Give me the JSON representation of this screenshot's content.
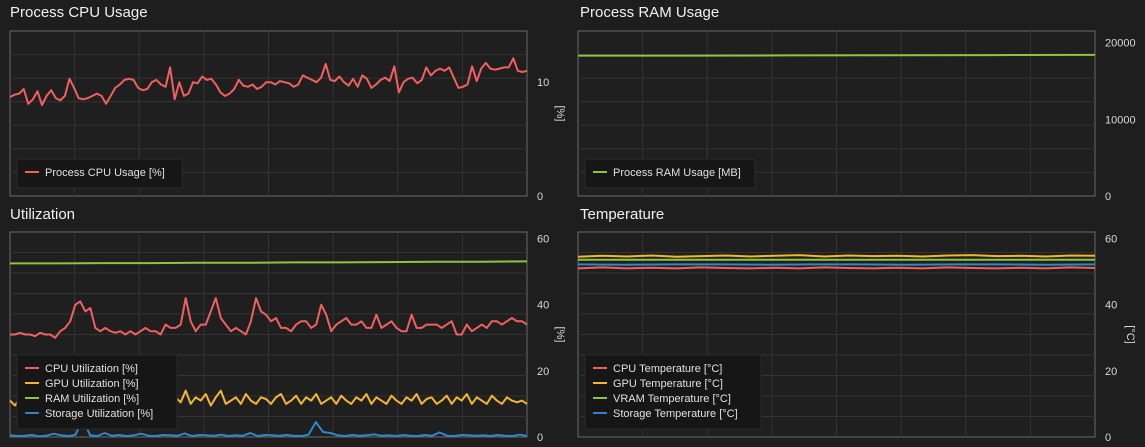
{
  "chart_data": [
    {
      "type": "line",
      "title": "Process CPU Usage",
      "ylabel": "[%]",
      "ylim": [
        0,
        14.5
      ],
      "yticks": [
        "0",
        "10"
      ],
      "ytick_values": [
        0,
        10
      ],
      "legend_position": "bottom-left",
      "grid": true,
      "series": [
        {
          "name": "Process CPU Usage [%]",
          "color": "#f0605e",
          "values": [
            8.7,
            8.9,
            9.0,
            9.4,
            8.1,
            8.5,
            9.2,
            8.0,
            8.8,
            9.3,
            8.6,
            8.4,
            8.8,
            10.3,
            9.5,
            8.6,
            8.5,
            8.6,
            8.8,
            9.0,
            8.8,
            8.1,
            8.8,
            9.5,
            9.8,
            10.2,
            10.3,
            10.2,
            9.5,
            9.3,
            9.4,
            10.0,
            10.2,
            9.8,
            9.6,
            11.3,
            8.5,
            10.0,
            8.8,
            9.0,
            10.0,
            9.9,
            10.5,
            10.2,
            10.3,
            9.8,
            9.1,
            8.8,
            9.0,
            9.4,
            10.2,
            9.7,
            9.6,
            9.8,
            9.4,
            9.6,
            10.0,
            10.0,
            9.8,
            10.1,
            10.0,
            9.9,
            9.6,
            9.8,
            10.6,
            10.4,
            10.2,
            10.0,
            10.4,
            11.6,
            10.2,
            10.1,
            10.5,
            10.0,
            9.7,
            10.3,
            9.6,
            10.6,
            10.3,
            9.5,
            9.8,
            10.2,
            10.4,
            10.1,
            11.4,
            9.1,
            10.0,
            10.3,
            10.4,
            9.9,
            10.2,
            11.3,
            10.6,
            11.0,
            11.2,
            11.0,
            11.3,
            10.4,
            9.5,
            9.6,
            9.8,
            11.4,
            10.1,
            11.2,
            11.7,
            11.2,
            11.1,
            11.2,
            11.3,
            11.3,
            12.1,
            11.0,
            10.9,
            11.0
          ]
        }
      ]
    },
    {
      "type": "line",
      "title": "Process RAM Usage",
      "ylabel": "",
      "ylim": [
        0,
        21500
      ],
      "yticks": [
        "0",
        "10000",
        "20000"
      ],
      "ytick_values": [
        0,
        10000,
        20000
      ],
      "legend_position": "bottom-left",
      "grid": true,
      "series": [
        {
          "name": "Process RAM Usage [MB]",
          "color": "#8cc63f",
          "values": [
            18300,
            18300,
            18320,
            18340,
            18360,
            18380
          ]
        }
      ]
    },
    {
      "type": "line",
      "title": "Utilization",
      "ylabel": "[%]",
      "ylim": [
        0,
        62
      ],
      "yticks": [
        "0",
        "20",
        "40",
        "60"
      ],
      "ytick_values": [
        0,
        20,
        40,
        60
      ],
      "legend_position": "bottom-left",
      "grid": true,
      "series": [
        {
          "name": "CPU Utilization [%]",
          "color": "#f0605e",
          "values": [
            31,
            31,
            31.5,
            31,
            31,
            30.5,
            31.5,
            31,
            31,
            30,
            32,
            33,
            35,
            40,
            41,
            38,
            39,
            33,
            32,
            33,
            32,
            31.5,
            32,
            31,
            32,
            31,
            32,
            33,
            32,
            32,
            31,
            34,
            33,
            33,
            34,
            42,
            35,
            32,
            34,
            34,
            38,
            42,
            36,
            34,
            32,
            33,
            32,
            31,
            35,
            42,
            38,
            37,
            35,
            36,
            33,
            33,
            32,
            34,
            35,
            35,
            33,
            34,
            40,
            37,
            32,
            34,
            35,
            36,
            34,
            34,
            35,
            33,
            33,
            37,
            33,
            34,
            35,
            33,
            32,
            32,
            37,
            33,
            33,
            34,
            34,
            34,
            33,
            34,
            35,
            31,
            31,
            34,
            32,
            33,
            34,
            33,
            35,
            35,
            34,
            35,
            36,
            35,
            35,
            34
          ]
        },
        {
          "name": "GPU Utilization [%]",
          "color": "#f3b630",
          "values": [
            11,
            9.5,
            12,
            10,
            12.5,
            10,
            11,
            13,
            9.5,
            12,
            11,
            10,
            12.5,
            10,
            13,
            11,
            9.5,
            12,
            11,
            13,
            10,
            12,
            11,
            9.5,
            12.5,
            10,
            11,
            13,
            12,
            10,
            12,
            9.5,
            11,
            12,
            10.5,
            14,
            10,
            12,
            11,
            13,
            9.5,
            12,
            14,
            10,
            11,
            12,
            10,
            13,
            11,
            10,
            12,
            11.5,
            10,
            12,
            13,
            10,
            11,
            12.5,
            10,
            12,
            11,
            13,
            10,
            11,
            12,
            10,
            12.5,
            11,
            10,
            12,
            11,
            13,
            10,
            12,
            11,
            10,
            12.5,
            11,
            10,
            12,
            11,
            13,
            10,
            11.5,
            12,
            10,
            11,
            12.5,
            10,
            12,
            11,
            13,
            10,
            12,
            11,
            10,
            12.5,
            11,
            10,
            12,
            11,
            10.5,
            11,
            10
          ]
        },
        {
          "name": "RAM Utilization [%]",
          "color": "#8cc63f",
          "values": [
            52.5,
            52.5,
            52.6,
            52.6,
            52.7,
            52.7,
            52.8,
            52.8,
            52.9,
            53.0,
            53.0,
            53.1
          ]
        },
        {
          "name": "Storage Utilization [%]",
          "color": "#2f86c8",
          "values": [
            0.5,
            0.3,
            0.4,
            0.6,
            0.2,
            0.4,
            1.0,
            0.5,
            0.3,
            0.6,
            5.5,
            0.5,
            0.3,
            1.2,
            0.4,
            0.6,
            0.3,
            0.5,
            1.0,
            0.4,
            0.3,
            0.6,
            0.5,
            0.4,
            1.1,
            0.3,
            0.6,
            0.5,
            0.4,
            0.7,
            0.3,
            0.5,
            0.4,
            1.2,
            0.3,
            0.6,
            0.5,
            0.4,
            0.6,
            0.4,
            0.3,
            0.7,
            4.5,
            1.5,
            1.2,
            0.5,
            0.3,
            0.6,
            0.4,
            0.5,
            0.8,
            0.4,
            0.5,
            0.3,
            0.6,
            0.4,
            0.3,
            0.6,
            0.4,
            1.4,
            0.4,
            0.3,
            0.6,
            0.5,
            0.4,
            0.5,
            0.3,
            0.6,
            0.4,
            0.3,
            0.7,
            0.3
          ]
        }
      ]
    },
    {
      "type": "line",
      "title": "Temperature",
      "ylabel": "[°C]",
      "ylim": [
        0,
        62
      ],
      "yticks": [
        "0",
        "20",
        "40",
        "60"
      ],
      "ytick_values": [
        0,
        20,
        40,
        60
      ],
      "legend_position": "bottom-left",
      "grid": true,
      "series": [
        {
          "name": "CPU Temperature [°C]",
          "color": "#f0605e",
          "values": [
            51,
            51.3,
            51,
            51.2,
            51,
            51.3,
            51.1,
            51,
            51.2,
            51,
            51.3,
            51.1,
            51,
            51.2,
            51,
            51.3,
            51.1,
            51,
            51.2,
            51,
            51.3,
            51.1
          ]
        },
        {
          "name": "GPU Temperature [°C]",
          "color": "#f3b630",
          "values": [
            54.5,
            54.8,
            54.6,
            54.9,
            54.5,
            54.7,
            54.9,
            54.6,
            54.8,
            55,
            54.6,
            54.9,
            54.7,
            54.8,
            54.6,
            54.9,
            55,
            54.7,
            54.8,
            54.6,
            54.9,
            54.8
          ]
        },
        {
          "name": "VRAM Temperature [°C]",
          "color": "#8cc63f",
          "values": [
            53.6,
            53.6,
            53.6,
            53.6,
            53.6,
            53.6
          ]
        },
        {
          "name": "Storage Temperature [°C]",
          "color": "#2f86c8",
          "values": [
            52.2,
            52.1,
            52.2,
            52.2,
            52.1,
            52.2,
            52.2,
            52.1,
            52.2,
            52.2,
            52.1,
            52.2
          ]
        }
      ]
    }
  ]
}
